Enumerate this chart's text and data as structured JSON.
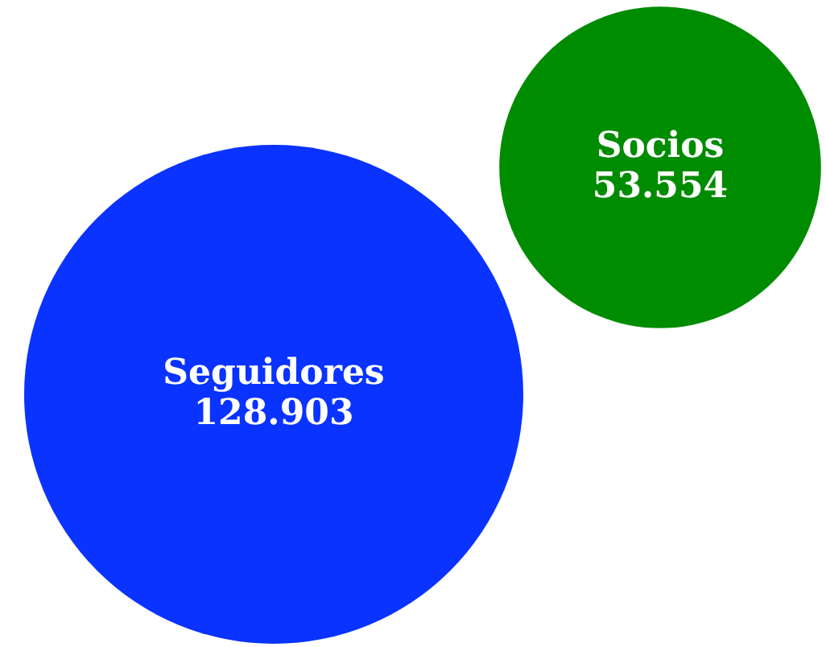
{
  "chart_data": {
    "type": "other",
    "categories": [
      "Seguidores",
      "Socios"
    ],
    "values": [
      128903,
      53554
    ],
    "value_labels": [
      "128.903",
      "53.554"
    ],
    "colors": [
      "#0a33ff",
      "#008c00"
    ]
  }
}
